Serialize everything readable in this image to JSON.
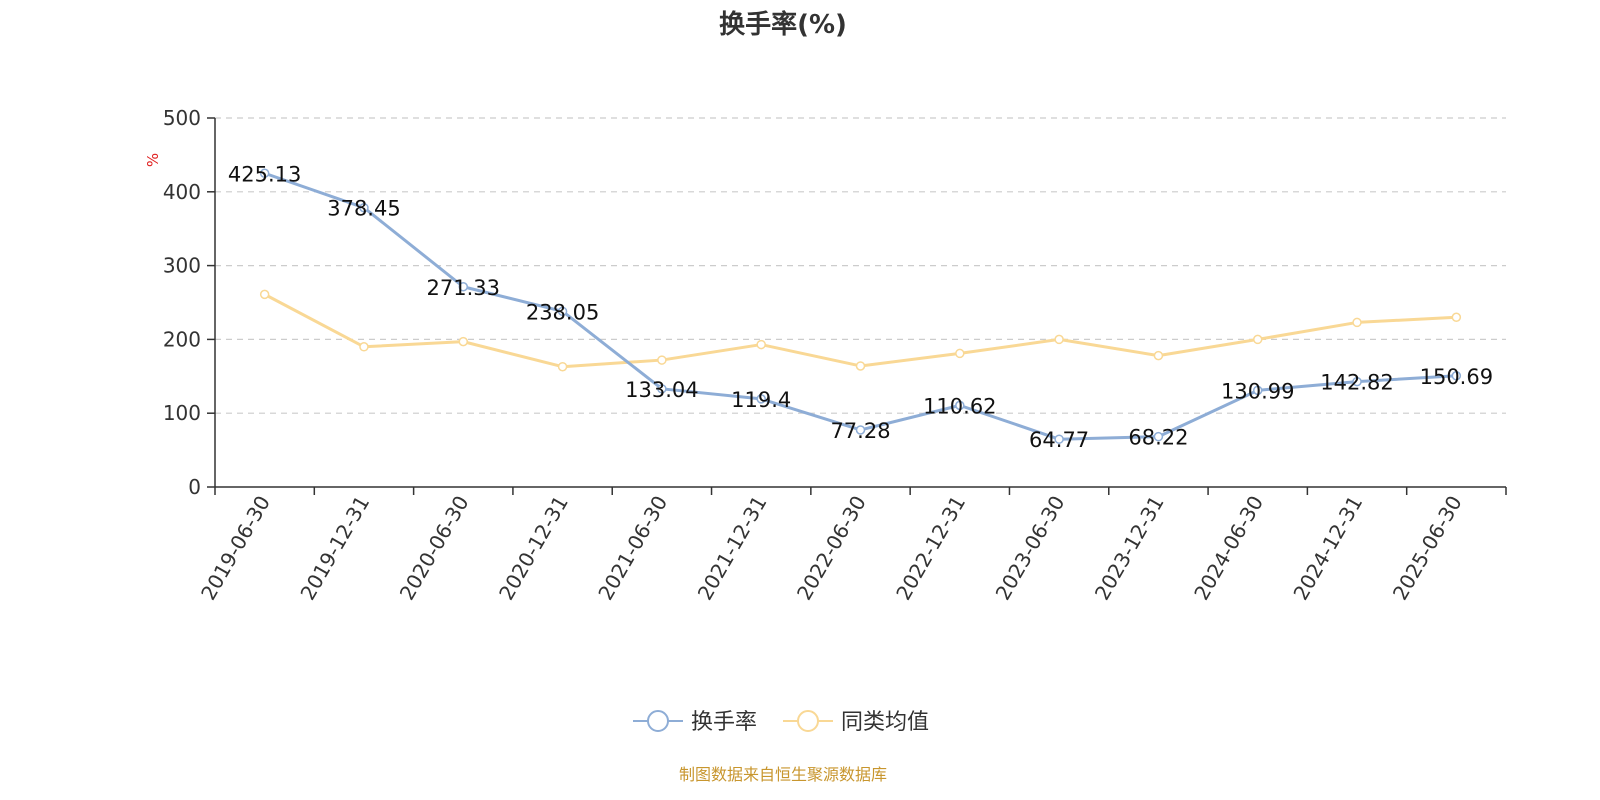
{
  "chart_data": {
    "type": "line",
    "title": "换手率(%)",
    "ylabel": "%",
    "xlabel": "",
    "ylim": [
      0,
      500
    ],
    "yticks": [
      0,
      100,
      200,
      300,
      400,
      500
    ],
    "grid": true,
    "legend_position": "bottom-center",
    "categories": [
      "2019-06-30",
      "2019-12-31",
      "2020-06-30",
      "2020-12-31",
      "2021-06-30",
      "2021-12-31",
      "2022-06-30",
      "2022-12-31",
      "2023-06-30",
      "2023-12-31",
      "2024-06-30",
      "2024-12-31",
      "2025-06-30"
    ],
    "series": [
      {
        "name": "换手率",
        "color": "#8EADD6",
        "values": [
          425.13,
          378.45,
          271.33,
          238.05,
          133.04,
          119.4,
          77.28,
          110.62,
          64.77,
          68.22,
          130.99,
          142.82,
          150.69
        ],
        "labels": [
          "425.13",
          "378.45",
          "271.33",
          "238.05",
          "133.04",
          "119.4",
          "77.28",
          "110.62",
          "64.77",
          "68.22",
          "130.99",
          "142.82",
          "150.69"
        ]
      },
      {
        "name": "同类均值",
        "color": "#F9D895",
        "values": [
          261,
          190,
          197,
          163,
          172,
          193,
          164,
          181,
          200,
          178,
          200,
          223,
          230
        ]
      }
    ],
    "source": "制图数据来自恒生聚源数据库",
    "source_color": "#C8962E",
    "unit_color": "#E02020"
  }
}
